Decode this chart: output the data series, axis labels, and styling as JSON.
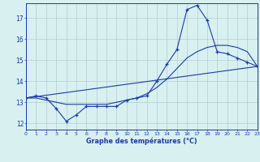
{
  "title": "Graphe des températures (°C)",
  "bg_color": "#d8f0f0",
  "line_color": "#1a3aad",
  "grid_color": "#b0cece",
  "axis_color": "#1a3aad",
  "text_color": "#1a3aad",
  "xlim": [
    0,
    23
  ],
  "ylim": [
    11.7,
    17.7
  ],
  "yticks": [
    12,
    13,
    14,
    15,
    16,
    17
  ],
  "xticks": [
    0,
    1,
    2,
    3,
    4,
    5,
    6,
    7,
    8,
    9,
    10,
    11,
    12,
    13,
    14,
    15,
    16,
    17,
    18,
    19,
    20,
    21,
    22,
    23
  ],
  "curve1_x": [
    0,
    1,
    2,
    3,
    4,
    5,
    6,
    7,
    8,
    9,
    10,
    11,
    12,
    13,
    14,
    15,
    16,
    17,
    18,
    19,
    20,
    21,
    22,
    23
  ],
  "curve1_y": [
    13.2,
    13.3,
    13.2,
    12.7,
    12.1,
    12.4,
    12.8,
    12.8,
    12.8,
    12.8,
    13.1,
    13.2,
    13.3,
    14.0,
    14.8,
    15.5,
    17.4,
    17.6,
    16.9,
    15.4,
    15.3,
    15.1,
    14.9,
    14.7
  ],
  "curve2_x": [
    0,
    1,
    2,
    3,
    4,
    5,
    6,
    7,
    8,
    9,
    10,
    11,
    12,
    13,
    14,
    15,
    16,
    17,
    18,
    19,
    20,
    21,
    22,
    23
  ],
  "curve2_y": [
    13.2,
    13.2,
    13.1,
    13.0,
    12.9,
    12.9,
    12.9,
    12.9,
    12.9,
    13.0,
    13.1,
    13.2,
    13.4,
    13.7,
    14.1,
    14.6,
    15.1,
    15.4,
    15.6,
    15.7,
    15.7,
    15.6,
    15.4,
    14.7
  ],
  "curve3_x": [
    0,
    23
  ],
  "curve3_y": [
    13.2,
    14.7
  ],
  "dpi": 100,
  "figsize": [
    3.2,
    2.0
  ]
}
